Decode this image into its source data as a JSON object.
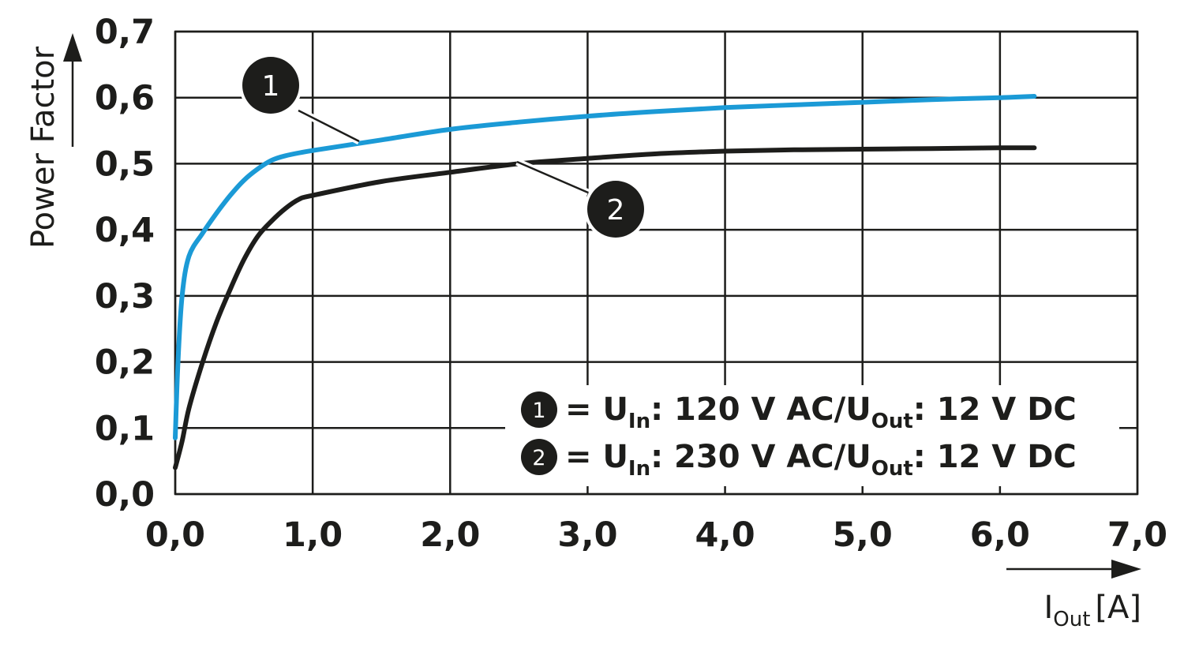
{
  "chart_data": {
    "type": "line",
    "xlabel": {
      "main": "I",
      "sub": "Out",
      "unit": "[A]"
    },
    "ylabel": "Power Factor",
    "xlim": [
      0,
      7
    ],
    "ylim": [
      0,
      0.7
    ],
    "grid": true,
    "x_ticks": [
      {
        "value": 0,
        "label": "0,0"
      },
      {
        "value": 1,
        "label": "1,0"
      },
      {
        "value": 2,
        "label": "2,0"
      },
      {
        "value": 3,
        "label": "3,0"
      },
      {
        "value": 4,
        "label": "4,0"
      },
      {
        "value": 5,
        "label": "5,0"
      },
      {
        "value": 6,
        "label": "6,0"
      },
      {
        "value": 7,
        "label": "7,0"
      }
    ],
    "y_ticks": [
      {
        "value": 0,
        "label": "0,0"
      },
      {
        "value": 0.1,
        "label": "0,1"
      },
      {
        "value": 0.2,
        "label": "0,2"
      },
      {
        "value": 0.3,
        "label": "0,3"
      },
      {
        "value": 0.4,
        "label": "0,4"
      },
      {
        "value": 0.5,
        "label": "0,5"
      },
      {
        "value": 0.6,
        "label": "0,6"
      },
      {
        "value": 0.7,
        "label": "0,7"
      }
    ],
    "legend_placement": "bottom-right",
    "series": [
      {
        "marker": "1",
        "legend": {
          "pre": "= U",
          "sub1": "In",
          "mid": ": 120 V AC/U",
          "sub2": "Out",
          "post": ": 12 V DC"
        },
        "color": "#1b9ad6",
        "points": [
          [
            0,
            0.085
          ],
          [
            0.02,
            0.2
          ],
          [
            0.05,
            0.3
          ],
          [
            0.1,
            0.36
          ],
          [
            0.2,
            0.395
          ],
          [
            0.3,
            0.425
          ],
          [
            0.4,
            0.452
          ],
          [
            0.5,
            0.475
          ],
          [
            0.6,
            0.492
          ],
          [
            0.7,
            0.505
          ],
          [
            0.8,
            0.512
          ],
          [
            1.0,
            0.52
          ],
          [
            1.5,
            0.536
          ],
          [
            2.0,
            0.552
          ],
          [
            2.5,
            0.563
          ],
          [
            3.0,
            0.572
          ],
          [
            3.5,
            0.579
          ],
          [
            4.0,
            0.585
          ],
          [
            4.5,
            0.589
          ],
          [
            5.0,
            0.593
          ],
          [
            5.5,
            0.597
          ],
          [
            6.0,
            0.6
          ],
          [
            6.25,
            0.602
          ]
        ]
      },
      {
        "marker": "2",
        "legend": {
          "pre": "= U",
          "sub1": "In",
          "mid": ": 230 V AC/U",
          "sub2": "Out",
          "post": ": 12 V DC"
        },
        "color": "#1d1d1b",
        "points": [
          [
            0,
            0.04
          ],
          [
            0.05,
            0.08
          ],
          [
            0.1,
            0.13
          ],
          [
            0.2,
            0.2
          ],
          [
            0.3,
            0.26
          ],
          [
            0.4,
            0.31
          ],
          [
            0.5,
            0.355
          ],
          [
            0.6,
            0.39
          ],
          [
            0.7,
            0.413
          ],
          [
            0.8,
            0.432
          ],
          [
            0.9,
            0.446
          ],
          [
            1.0,
            0.452
          ],
          [
            1.5,
            0.473
          ],
          [
            2.0,
            0.487
          ],
          [
            2.5,
            0.5
          ],
          [
            3.0,
            0.508
          ],
          [
            3.5,
            0.515
          ],
          [
            4.0,
            0.519
          ],
          [
            4.5,
            0.521
          ],
          [
            5.0,
            0.522
          ],
          [
            5.5,
            0.523
          ],
          [
            6.0,
            0.524
          ],
          [
            6.25,
            0.524
          ]
        ]
      }
    ]
  }
}
